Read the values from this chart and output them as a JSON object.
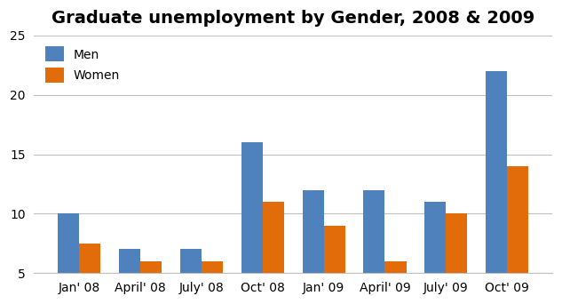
{
  "title": "Graduate unemployment by Gender, 2008 & 2009",
  "categories": [
    "Jan' 08",
    "April' 08",
    "July' 08",
    "Oct' 08",
    "Jan' 09",
    "April' 09",
    "July' 09",
    "Oct' 09"
  ],
  "men": [
    10,
    7,
    7,
    16,
    12,
    12,
    11,
    22
  ],
  "women": [
    7.5,
    6,
    6,
    11,
    9,
    6,
    10,
    14
  ],
  "men_color": "#4F81BD",
  "women_color": "#E26B0A",
  "ylim": [
    5,
    25
  ],
  "yticks": [
    5,
    10,
    15,
    20,
    25
  ],
  "legend_men": "Men",
  "legend_women": "Women",
  "bar_width": 0.35,
  "title_fontsize": 14,
  "tick_fontsize": 10,
  "legend_fontsize": 10,
  "background_color": "#FFFFFF",
  "grid_color": "#C0C0C0"
}
